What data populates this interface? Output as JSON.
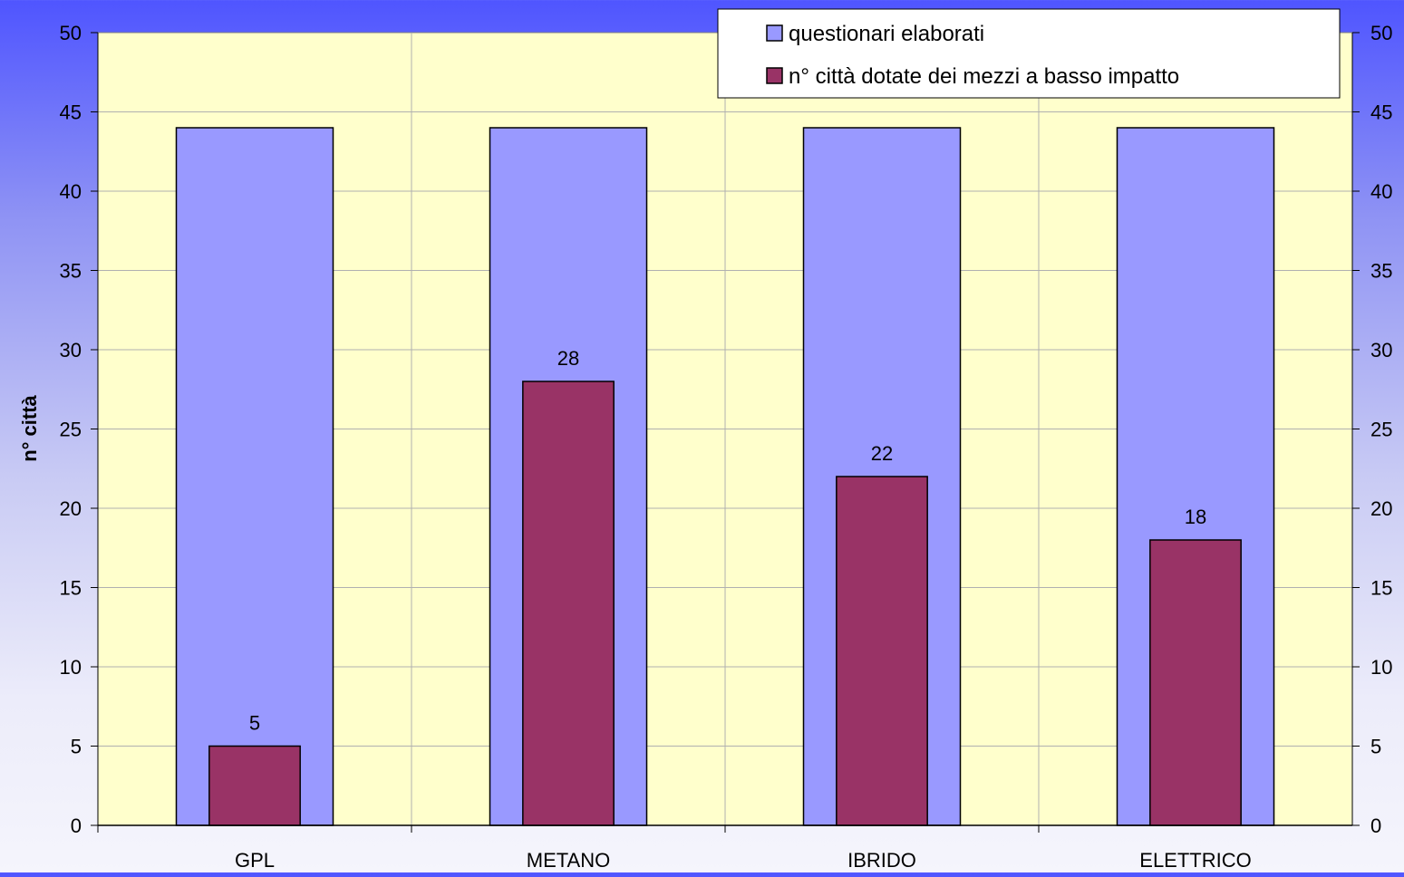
{
  "chart_data": {
    "type": "bar",
    "title": "",
    "xlabel": "",
    "ylabel": "n° città",
    "ylim": [
      0,
      50
    ],
    "ytick_step": 5,
    "yticks": [
      0,
      5,
      10,
      15,
      20,
      25,
      30,
      35,
      40,
      45,
      50
    ],
    "secondary_y_axis": true,
    "categories": [
      "GPL",
      "METANO",
      "IBRIDO",
      "ELETTRICO"
    ],
    "series": [
      {
        "name": "questionari elaborati",
        "values": [
          44,
          44,
          44,
          44
        ],
        "color": "#9999ff",
        "show_labels": false
      },
      {
        "name": "n° città dotate dei mezzi a basso impatto",
        "values": [
          5,
          28,
          22,
          18
        ],
        "color": "#993366",
        "show_labels": true
      }
    ],
    "legend_position": "top-right",
    "grid": true,
    "plot_background": "#ffffcc"
  }
}
